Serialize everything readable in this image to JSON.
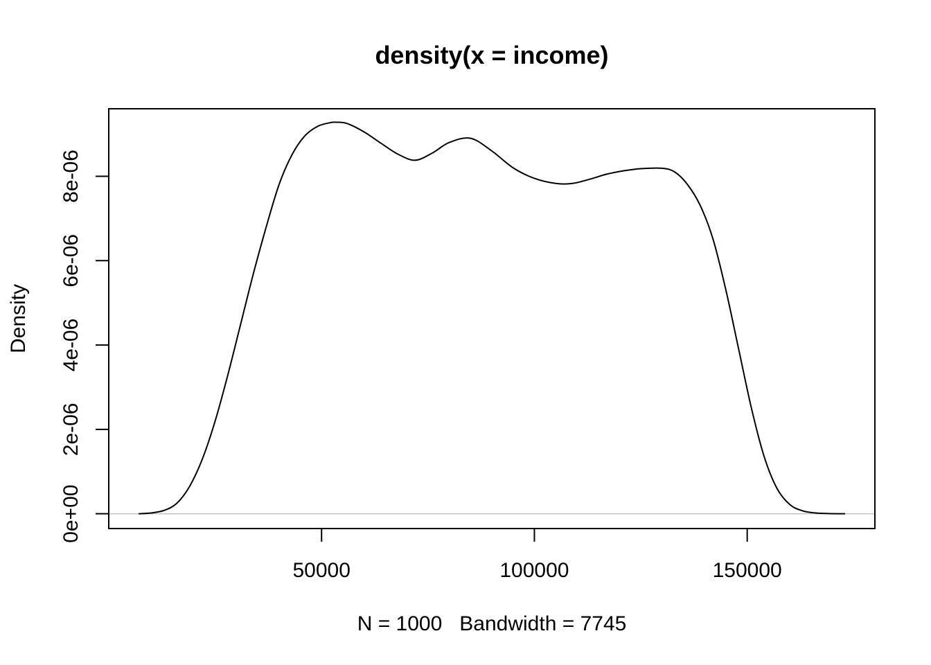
{
  "chart_data": {
    "type": "line",
    "title": "density(x = income)",
    "xlabel": "N = 1000   Bandwidth = 7745",
    "ylabel": "Density",
    "xlim": [
      0,
      180000
    ],
    "ylim": [
      -3.5e-07,
      9.6e-06
    ],
    "x_ticks": [
      50000,
      100000,
      150000
    ],
    "x_tick_labels": [
      "50000",
      "100000",
      "150000"
    ],
    "y_ticks": [
      0,
      2e-06,
      4e-06,
      6e-06,
      8e-06
    ],
    "y_tick_labels": [
      "0e+00",
      "2e-06",
      "4e-06",
      "6e-06",
      "8e-06"
    ],
    "baseline": 0,
    "baseline_color": "#bebebe",
    "line_color": "#000000",
    "grid": false,
    "legend": "none",
    "series": [
      {
        "x": [
          7000,
          10000,
          13000,
          16000,
          19000,
          22000,
          25000,
          28000,
          31000,
          34000,
          37000,
          40000,
          43000,
          46000,
          49000,
          52000,
          53500,
          56000,
          60000,
          64000,
          68000,
          72000,
          76000,
          80000,
          85000,
          90000,
          95000,
          100000,
          105000,
          109000,
          113000,
          117000,
          121000,
          125000,
          130000,
          133000,
          136000,
          139000,
          142000,
          145000,
          148000,
          151000,
          154000,
          157000,
          160000,
          163000,
          166000,
          169000,
          173000
        ],
        "y": [
          0.0,
          2e-08,
          8e-08,
          2.5e-07,
          6.5e-07,
          1.3e-06,
          2.2e-06,
          3.3e-06,
          4.5e-06,
          5.7e-06,
          6.8e-06,
          7.8e-06,
          8.5e-06,
          8.95e-06,
          9.18e-06,
          9.27e-06,
          9.28e-06,
          9.25e-06,
          9.05e-06,
          8.78e-06,
          8.52e-06,
          8.38e-06,
          8.55e-06,
          8.8e-06,
          8.9e-06,
          8.6e-06,
          8.2e-06,
          7.95e-06,
          7.83e-06,
          7.83e-06,
          7.93e-06,
          8.05e-06,
          8.13e-06,
          8.18e-06,
          8.19e-06,
          8.1e-06,
          7.8e-06,
          7.3e-06,
          6.5e-06,
          5.3e-06,
          3.9e-06,
          2.5e-06,
          1.35e-06,
          6e-07,
          2.2e-07,
          7e-08,
          2e-08,
          5e-09,
          0.0
        ]
      }
    ]
  }
}
